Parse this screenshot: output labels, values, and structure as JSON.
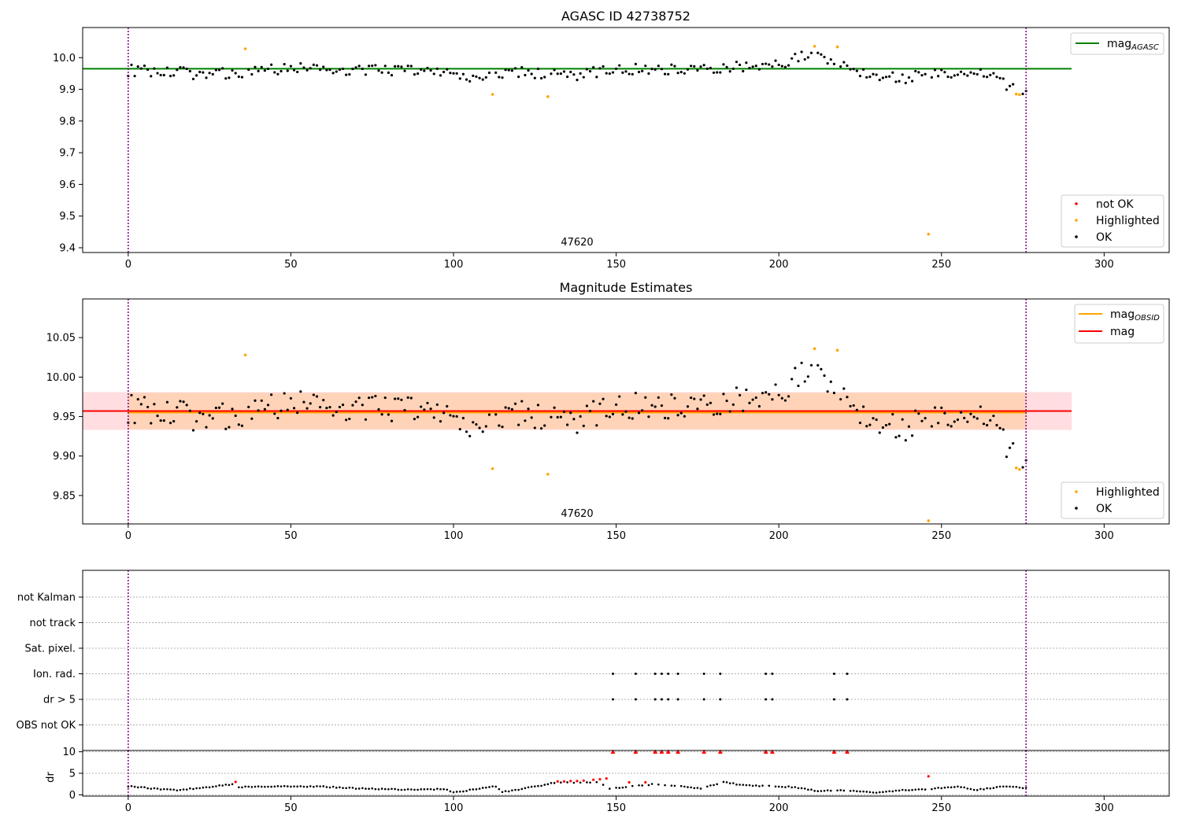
{
  "chart_data": [
    {
      "type": "scatter",
      "title": "AGASC ID 42738752",
      "annotation": "47620",
      "xlim": [
        -14,
        320
      ],
      "ylim": [
        9.385,
        10.095
      ],
      "xticks": [
        0,
        50,
        100,
        150,
        200,
        250,
        300
      ],
      "yticks": [
        9.4,
        9.5,
        9.6,
        9.7,
        9.8,
        9.9,
        10.0
      ],
      "ytick_labels": [
        "9.4",
        "9.5",
        "9.6",
        "9.7",
        "9.8",
        "9.9",
        "10.0"
      ],
      "obs_bounds": [
        0,
        276
      ],
      "line_value": 9.965,
      "line_end": 290,
      "line_label": "mag",
      "line_subscript": "AGASC",
      "legend_line": [
        {
          "label": "mag",
          "sub": "AGASC",
          "color": "#008000"
        }
      ],
      "legend_markers": [
        {
          "label": "not OK",
          "color": "#ff0000"
        },
        {
          "label": "Highlighted",
          "color": "#ffa500"
        },
        {
          "label": "OK",
          "color": "#000000"
        }
      ],
      "highlighted": [
        [
          36,
          10.028
        ],
        [
          112,
          9.884
        ],
        [
          129,
          9.877
        ],
        [
          211,
          10.036
        ],
        [
          218,
          10.034
        ],
        [
          246,
          9.443
        ],
        [
          273,
          9.885
        ],
        [
          274,
          9.883
        ]
      ],
      "trend": [
        [
          0,
          9.96
        ],
        [
          20,
          9.95
        ],
        [
          35,
          9.95
        ],
        [
          50,
          9.97
        ],
        [
          70,
          9.96
        ],
        [
          95,
          9.96
        ],
        [
          105,
          9.93
        ],
        [
          120,
          9.955
        ],
        [
          135,
          9.94
        ],
        [
          150,
          9.965
        ],
        [
          175,
          9.965
        ],
        [
          190,
          9.975
        ],
        [
          200,
          9.975
        ],
        [
          205,
          10.005
        ],
        [
          212,
          10.0
        ],
        [
          220,
          9.975
        ],
        [
          228,
          9.95
        ],
        [
          238,
          9.935
        ],
        [
          245,
          9.955
        ],
        [
          255,
          9.945
        ],
        [
          265,
          9.945
        ],
        [
          270,
          9.915
        ],
        [
          276,
          9.895
        ]
      ],
      "scatter_amp": 0.018
    },
    {
      "type": "scatter",
      "title": "Magnitude Estimates",
      "annotation": "47620",
      "xlim": [
        -14,
        320
      ],
      "ylim": [
        9.814,
        10.099
      ],
      "xticks": [
        0,
        50,
        100,
        150,
        200,
        250,
        300
      ],
      "yticks": [
        9.85,
        9.9,
        9.95,
        10.0,
        10.05
      ],
      "ytick_labels": [
        "9.85",
        "9.90",
        "9.95",
        "10.00",
        "10.05"
      ],
      "obs_bounds": [
        0,
        276
      ],
      "mag_value": 9.957,
      "mag_obsid_value": 9.955,
      "band_outer": [
        9.933,
        9.981
      ],
      "band_inner": [
        9.934,
        9.98
      ],
      "line_end": 290,
      "legend_line": [
        {
          "label": "mag",
          "sub": "OBSID",
          "color": "#ffa500"
        },
        {
          "label": "mag",
          "sub": "",
          "color": "#ff0000"
        }
      ],
      "legend_markers": [
        {
          "label": "Highlighted",
          "color": "#ffa500"
        },
        {
          "label": "OK",
          "color": "#000000"
        }
      ],
      "highlighted": [
        [
          36,
          10.028
        ],
        [
          112,
          9.884
        ],
        [
          129,
          9.877
        ],
        [
          211,
          10.036
        ],
        [
          218,
          10.034
        ],
        [
          246,
          9.818
        ],
        [
          273,
          9.885
        ],
        [
          274,
          9.883
        ]
      ],
      "trend": [
        [
          0,
          9.96
        ],
        [
          20,
          9.95
        ],
        [
          35,
          9.95
        ],
        [
          50,
          9.97
        ],
        [
          70,
          9.96
        ],
        [
          95,
          9.96
        ],
        [
          105,
          9.93
        ],
        [
          120,
          9.955
        ],
        [
          135,
          9.94
        ],
        [
          150,
          9.965
        ],
        [
          175,
          9.965
        ],
        [
          190,
          9.975
        ],
        [
          200,
          9.975
        ],
        [
          205,
          10.005
        ],
        [
          212,
          10.0
        ],
        [
          220,
          9.975
        ],
        [
          228,
          9.95
        ],
        [
          238,
          9.935
        ],
        [
          245,
          9.955
        ],
        [
          255,
          9.945
        ],
        [
          265,
          9.945
        ],
        [
          270,
          9.915
        ],
        [
          276,
          9.895
        ]
      ],
      "scatter_amp": 0.018
    },
    {
      "type": "scatter",
      "title": "",
      "xlim": [
        -14,
        320
      ],
      "xticks": [
        0,
        50,
        100,
        150,
        200,
        250,
        300
      ],
      "obs_bounds": [
        0,
        276
      ],
      "flag_rows": [
        "not Kalman",
        "not track",
        "Sat. pixel.",
        "Ion. rad.",
        "dr > 5",
        "OBS not OK"
      ],
      "flagged_points": {
        "Ion. rad.": [
          149,
          156,
          162,
          164,
          166,
          169,
          177,
          182,
          196,
          198,
          217,
          221
        ],
        "dr > 5": [
          149,
          156,
          162,
          164,
          166,
          169,
          177,
          182,
          196,
          198,
          217,
          221
        ]
      }
    },
    {
      "type": "scatter",
      "title": "",
      "ylabel": "dr",
      "xlim": [
        -14,
        320
      ],
      "ylim": [
        -0.3,
        10.3
      ],
      "xticks": [
        0,
        50,
        100,
        150,
        200,
        250,
        300
      ],
      "xtick_labels": [
        "0",
        "50",
        "100",
        "150",
        "200",
        "250",
        "300"
      ],
      "yticks": [
        0,
        5,
        10
      ],
      "ytick_labels": [
        "0",
        "5",
        "10"
      ],
      "obs_bounds": [
        0,
        276
      ],
      "clipped_red": [
        149,
        156,
        162,
        164,
        166,
        169,
        177,
        182,
        196,
        198,
        217,
        221
      ],
      "red_points": [
        [
          33,
          3.0
        ],
        [
          132,
          3.1
        ],
        [
          134,
          3.1
        ],
        [
          136,
          3.2
        ],
        [
          138,
          3.2
        ],
        [
          140,
          3.3
        ],
        [
          143,
          3.5
        ],
        [
          145,
          3.6
        ],
        [
          147,
          3.8
        ],
        [
          154,
          2.9
        ],
        [
          159,
          2.9
        ],
        [
          246,
          4.3
        ]
      ],
      "dr_profile": [
        [
          0,
          2.0
        ],
        [
          10,
          1.3
        ],
        [
          15,
          1.1
        ],
        [
          25,
          1.8
        ],
        [
          33,
          2.6
        ],
        [
          34,
          1.8
        ],
        [
          45,
          2.0
        ],
        [
          60,
          1.9
        ],
        [
          70,
          1.5
        ],
        [
          80,
          1.3
        ],
        [
          90,
          1.2
        ],
        [
          97,
          1.4
        ],
        [
          100,
          0.5
        ],
        [
          105,
          1.1
        ],
        [
          113,
          2.0
        ],
        [
          115,
          0.6
        ],
        [
          125,
          1.9
        ],
        [
          131,
          2.8
        ],
        [
          145,
          2.9
        ],
        [
          148,
          1.5
        ],
        [
          162,
          2.5
        ],
        [
          176,
          1.5
        ],
        [
          183,
          2.9
        ],
        [
          190,
          2.2
        ],
        [
          205,
          1.8
        ],
        [
          212,
          0.9
        ],
        [
          220,
          1.0
        ],
        [
          230,
          0.6
        ],
        [
          237,
          1.0
        ],
        [
          245,
          1.3
        ],
        [
          250,
          1.6
        ],
        [
          256,
          1.9
        ],
        [
          260,
          1.1
        ],
        [
          265,
          1.5
        ],
        [
          270,
          2.0
        ],
        [
          276,
          1.5
        ]
      ]
    }
  ]
}
